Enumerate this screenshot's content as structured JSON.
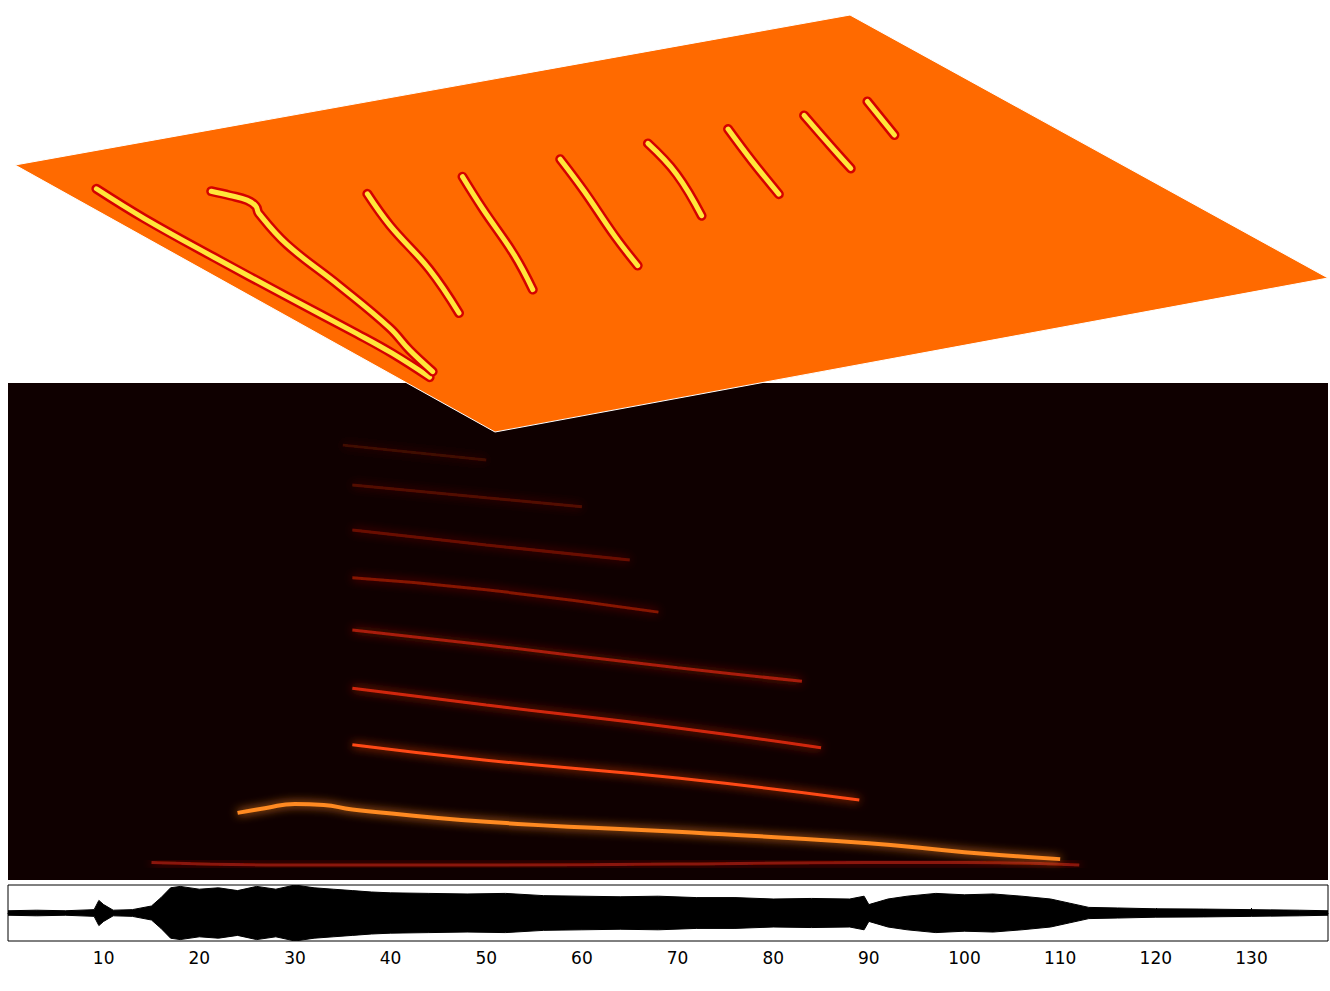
{
  "chart_data": {
    "type": "spectrogram",
    "xlim": [
      0,
      138
    ],
    "xticks": [
      10,
      20,
      30,
      40,
      50,
      60,
      70,
      80,
      90,
      100,
      110,
      120,
      130
    ],
    "ylim": [
      0,
      100
    ],
    "tick_labels": "x",
    "series": [
      {
        "color": "#8a1408",
        "x": [
          15,
          30,
          50,
          70,
          90,
          100,
          112
        ],
        "values": [
          3.5,
          3,
          3,
          3.2,
          3.5,
          3.5,
          3
        ]
      },
      {
        "color": "#ff8a20",
        "x": [
          24,
          27,
          30,
          33,
          36,
          50,
          70,
          90,
          100,
          110
        ],
        "values": [
          13.5,
          14.5,
          15.3,
          15.1,
          14.2,
          11.7,
          9.7,
          7.4,
          5.6,
          4.2
        ]
      },
      {
        "color": "#ff4a14",
        "x": [
          36,
          50,
          70,
          89
        ],
        "values": [
          27.2,
          24.1,
          20.5,
          16.1
        ]
      },
      {
        "color": "#d0280c",
        "x": [
          36,
          50,
          70,
          85
        ],
        "values": [
          38.6,
          35.2,
          30.6,
          26.6
        ]
      },
      {
        "color": "#a81c08",
        "x": [
          36,
          50,
          70,
          83
        ],
        "values": [
          50.3,
          47.3,
          42.7,
          40.0
        ]
      },
      {
        "color": "#861406",
        "x": [
          36,
          50,
          68
        ],
        "values": [
          60.8,
          58.4,
          53.9
        ]
      },
      {
        "color": "#6a1004",
        "x": [
          36,
          50,
          65
        ],
        "values": [
          70.4,
          67.4,
          64.4
        ]
      },
      {
        "color": "#520c04",
        "x": [
          36,
          50,
          60
        ],
        "values": [
          79.5,
          76.9,
          75.1
        ]
      },
      {
        "color": "#400a04",
        "x": [
          35,
          50
        ],
        "values": [
          87.5,
          84.5
        ]
      }
    ],
    "waveform": {
      "color": "#000000",
      "ylim": [
        -1,
        1
      ],
      "x": [
        0,
        3,
        6,
        9,
        9.5,
        10,
        11,
        13,
        15,
        16,
        17,
        18,
        20,
        22,
        24,
        26,
        28,
        30,
        32,
        34,
        36,
        38,
        40,
        44,
        48,
        52,
        56,
        60,
        64,
        68,
        72,
        76,
        80,
        84,
        88,
        89.5,
        90,
        92,
        94,
        97,
        100,
        103,
        106,
        109,
        111,
        113,
        116,
        120,
        125,
        130,
        135,
        138
      ],
      "amplitude": [
        0.08,
        0.1,
        0.08,
        0.12,
        0.45,
        0.3,
        0.1,
        0.12,
        0.25,
        0.55,
        0.9,
        0.95,
        0.85,
        0.9,
        0.8,
        0.95,
        0.85,
        1.0,
        0.9,
        0.85,
        0.8,
        0.75,
        0.72,
        0.7,
        0.68,
        0.7,
        0.62,
        0.6,
        0.58,
        0.6,
        0.55,
        0.55,
        0.5,
        0.52,
        0.5,
        0.6,
        0.3,
        0.5,
        0.6,
        0.7,
        0.65,
        0.68,
        0.6,
        0.5,
        0.35,
        0.2,
        0.18,
        0.15,
        0.14,
        0.12,
        0.1,
        0.08
      ]
    }
  }
}
